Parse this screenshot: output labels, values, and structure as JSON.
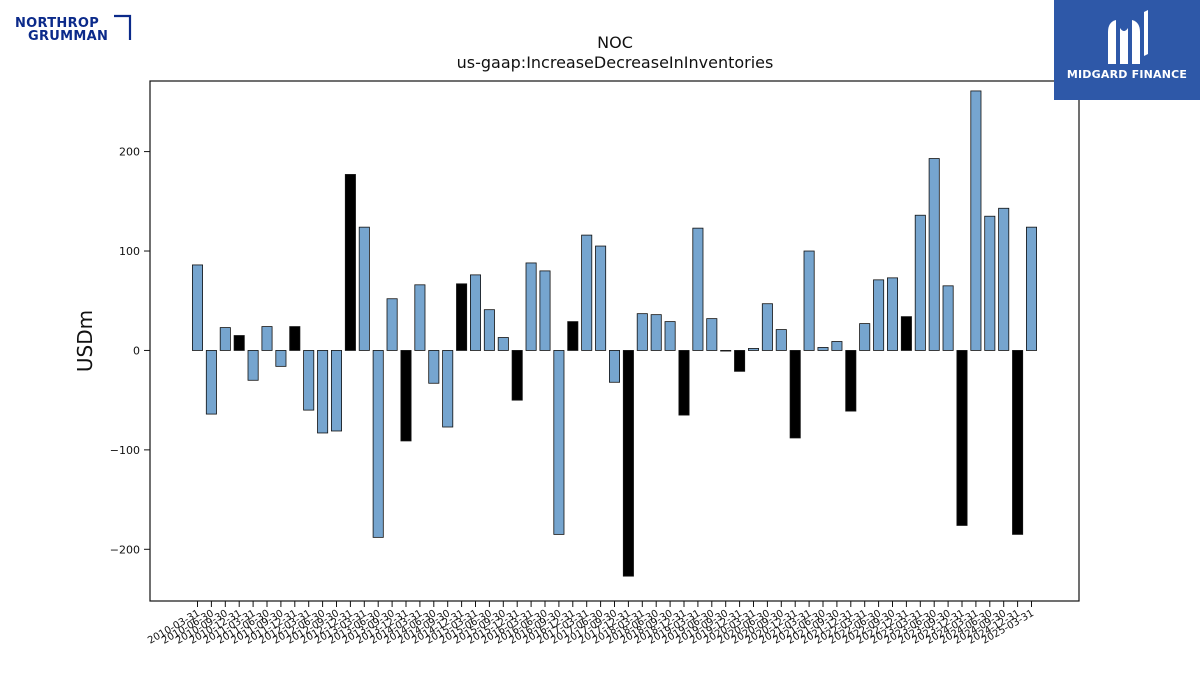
{
  "logos": {
    "left": {
      "line1": "NORTHROP",
      "line2": "GRUMMAN"
    },
    "right": {
      "text": "MIDGARD FINANCE"
    }
  },
  "chart_data": {
    "type": "bar",
    "title": "NOC",
    "subtitle": "us-gaap:IncreaseDecreaseInInventories",
    "ylabel": "USDm",
    "ylim": [
      -252,
      271
    ],
    "yticks": [
      -200,
      -100,
      0,
      100,
      200
    ],
    "ytick_labels": [
      "−200",
      "−100",
      "0",
      "100",
      "200"
    ],
    "colors": {
      "default": "#76a5cf",
      "highlight": "#000000",
      "edge": "#111111"
    },
    "categories": [
      "2010-03-31",
      "2010-06-30",
      "2010-09-30",
      "2010-12-31",
      "2011-03-31",
      "2011-06-30",
      "2011-09-30",
      "2011-12-31",
      "2012-03-31",
      "2012-06-30",
      "2012-09-30",
      "2012-12-31",
      "2013-03-31",
      "2013-06-30",
      "2013-09-30",
      "2013-12-31",
      "2014-03-31",
      "2014-06-30",
      "2014-09-30",
      "2014-12-31",
      "2015-03-31",
      "2015-06-30",
      "2015-09-30",
      "2015-12-31",
      "2016-03-31",
      "2016-06-30",
      "2016-09-30",
      "2016-12-31",
      "2017-03-31",
      "2017-06-30",
      "2017-09-30",
      "2017-12-31",
      "2018-03-31",
      "2018-06-30",
      "2018-09-30",
      "2018-12-31",
      "2019-03-31",
      "2019-06-30",
      "2019-09-30",
      "2019-12-31",
      "2020-03-31",
      "2020-06-30",
      "2020-09-30",
      "2020-12-31",
      "2021-03-31",
      "2021-06-30",
      "2021-09-30",
      "2021-12-31",
      "2022-03-31",
      "2022-06-30",
      "2022-09-30",
      "2022-12-31",
      "2023-03-31",
      "2023-06-30",
      "2023-09-30",
      "2023-12-31",
      "2024-03-31",
      "2024-06-30",
      "2024-09-30",
      "2024-12-31",
      "2025-03-31"
    ],
    "values": [
      86,
      -64,
      23,
      15,
      -30,
      24,
      -16,
      24,
      -60,
      -83,
      -81,
      177,
      124,
      -188,
      52,
      -91,
      66,
      -33,
      -77,
      67,
      76,
      41,
      13,
      -50,
      88,
      80,
      -185,
      29,
      116,
      105,
      -32,
      -227,
      37,
      36,
      29,
      -65,
      123,
      32,
      0,
      -21,
      2,
      47,
      21,
      -88,
      100,
      3,
      9,
      -61,
      27,
      71,
      73,
      34,
      136,
      193,
      65,
      -176,
      261,
      135,
      143,
      -185,
      124
    ],
    "highlight_categories": [
      "2010-12-31",
      "2011-12-31",
      "2012-12-31",
      "2013-12-31",
      "2014-12-31",
      "2015-12-31",
      "2016-12-31",
      "2017-12-31",
      "2018-12-31",
      "2019-12-31",
      "2020-12-31",
      "2021-12-31",
      "2022-12-31",
      "2023-12-31",
      "2024-12-31"
    ]
  }
}
